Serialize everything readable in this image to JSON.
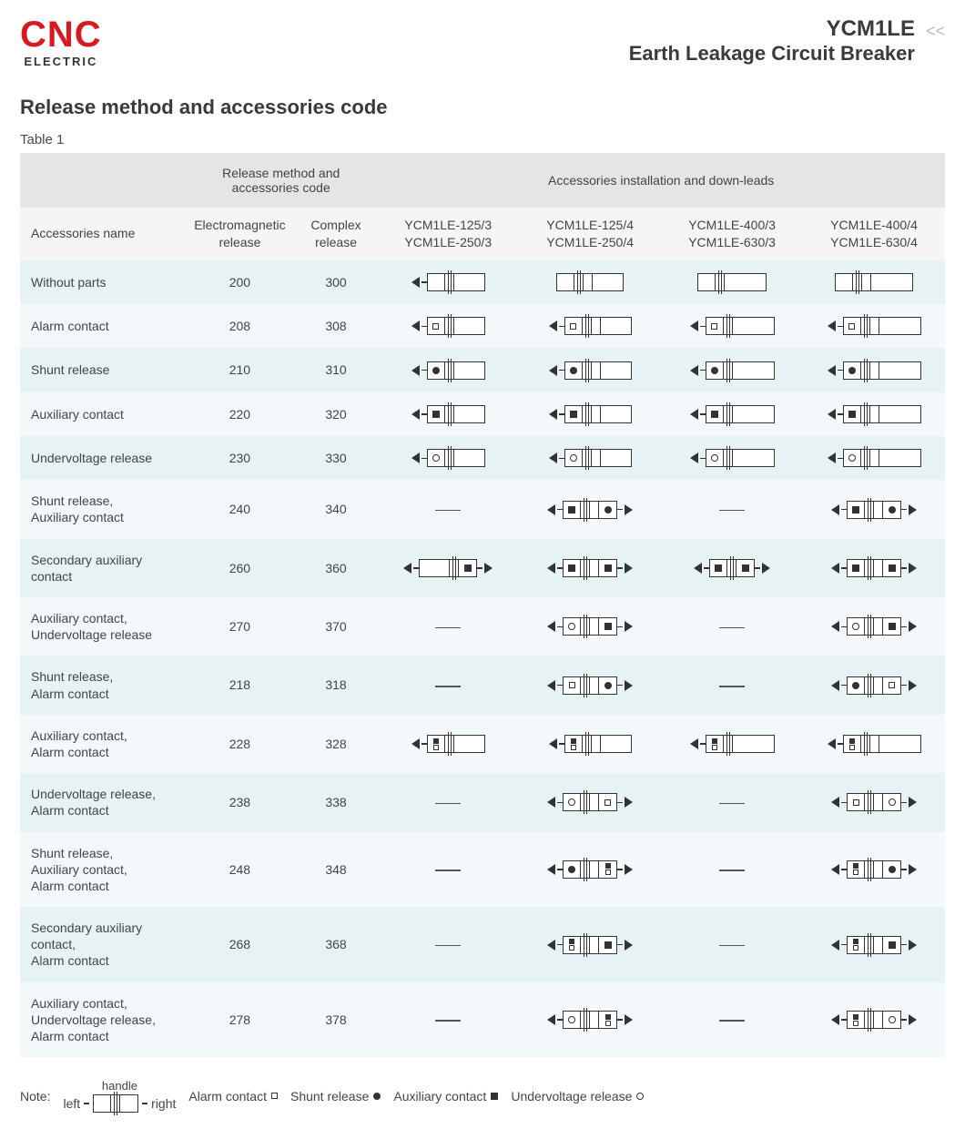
{
  "logo": {
    "brand": "CNC",
    "sub": "ELECTRIC"
  },
  "product": {
    "model": "YCM1LE",
    "name": "Earth Leakage Circuit Breaker"
  },
  "section_title": "Release method and accessories code",
  "table_label": "Table 1",
  "colors": {
    "brand_red": "#d71920",
    "text": "#3a3a3a",
    "row_odd": "#e7f2f5",
    "row_even": "#f3f9fb",
    "header_bg": "#e5e5e5",
    "subheader_bg": "#f5f5f5",
    "line": "#333333"
  },
  "group_headers": {
    "codes": "Release method and accessories code",
    "install": "Accessories installation and down-leads"
  },
  "columns": {
    "name": "Accessories name",
    "em_release": "Electromagnetic release",
    "complex_release": "Complex release",
    "col1_l1": "YCM1LE-125/3",
    "col1_l2": "YCM1LE-250/3",
    "col2_l1": "YCM1LE-125/4",
    "col2_l2": "YCM1LE-250/4",
    "col3_l1": "YCM1LE-400/3",
    "col3_l2": "YCM1LE-630/3",
    "col4_l1": "YCM1LE-400/4",
    "col4_l2": "YCM1LE-630/4"
  },
  "legend": {
    "note": "Note:",
    "handle": "handle",
    "left": "left",
    "right": "right",
    "alarm": "Alarm contact",
    "shunt": "Shunt release",
    "aux": "Auxiliary contact",
    "uv": "Undervoltage release"
  },
  "symbols": {
    "alarm": "sym-alarm",
    "shunt": "sym-shunt",
    "aux": "sym-aux",
    "uv": "sym-uv"
  },
  "rows": [
    {
      "name": "Without parts",
      "em": "200",
      "cx": "300",
      "d": [
        {
          "left_arrow": true,
          "left_sym": [],
          "right_cell": "wide",
          "right_sym": [],
          "right_arrow": false,
          "poles": 3
        },
        {
          "left_arrow": false,
          "left_sym": [],
          "right_cell": "wide",
          "right_sym": [],
          "right_arrow": false,
          "poles": 4
        },
        {
          "left_arrow": false,
          "left_sym": [],
          "right_cell": "wider",
          "right_sym": [],
          "right_arrow": false,
          "poles": 3
        },
        {
          "left_arrow": false,
          "left_sym": [],
          "right_cell": "wider",
          "right_sym": [],
          "right_arrow": false,
          "poles": 4
        }
      ]
    },
    {
      "name": "Alarm contact",
      "em": "208",
      "cx": "308",
      "d": [
        {
          "left_arrow": true,
          "left_sym": [
            "alarm"
          ],
          "right_cell": "wide",
          "right_sym": [],
          "right_arrow": false,
          "poles": 3
        },
        {
          "left_arrow": true,
          "left_sym": [
            "alarm"
          ],
          "right_cell": "wide",
          "right_sym": [],
          "right_arrow": false,
          "poles": 4
        },
        {
          "left_arrow": true,
          "left_sym": [
            "alarm"
          ],
          "right_cell": "wider",
          "right_sym": [],
          "right_arrow": false,
          "poles": 3
        },
        {
          "left_arrow": true,
          "left_sym": [
            "alarm"
          ],
          "right_cell": "wider",
          "right_sym": [],
          "right_arrow": false,
          "poles": 4
        }
      ]
    },
    {
      "name": "Shunt release",
      "em": "210",
      "cx": "310",
      "d": [
        {
          "left_arrow": true,
          "left_sym": [
            "shunt"
          ],
          "right_cell": "wide",
          "right_sym": [],
          "right_arrow": false,
          "poles": 3
        },
        {
          "left_arrow": true,
          "left_sym": [
            "shunt"
          ],
          "right_cell": "wide",
          "right_sym": [],
          "right_arrow": false,
          "poles": 4
        },
        {
          "left_arrow": true,
          "left_sym": [
            "shunt"
          ],
          "right_cell": "wider",
          "right_sym": [],
          "right_arrow": false,
          "poles": 3
        },
        {
          "left_arrow": true,
          "left_sym": [
            "shunt"
          ],
          "right_cell": "wider",
          "right_sym": [],
          "right_arrow": false,
          "poles": 4
        }
      ]
    },
    {
      "name": "Auxiliary contact",
      "em": "220",
      "cx": "320",
      "d": [
        {
          "left_arrow": true,
          "left_sym": [
            "aux"
          ],
          "right_cell": "wide",
          "right_sym": [],
          "right_arrow": false,
          "poles": 3
        },
        {
          "left_arrow": true,
          "left_sym": [
            "aux"
          ],
          "right_cell": "wide",
          "right_sym": [],
          "right_arrow": false,
          "poles": 4
        },
        {
          "left_arrow": true,
          "left_sym": [
            "aux"
          ],
          "right_cell": "wider",
          "right_sym": [],
          "right_arrow": false,
          "poles": 3
        },
        {
          "left_arrow": true,
          "left_sym": [
            "aux"
          ],
          "right_cell": "wider",
          "right_sym": [],
          "right_arrow": false,
          "poles": 4
        }
      ]
    },
    {
      "name": "Undervoltage release",
      "em": "230",
      "cx": "330",
      "d": [
        {
          "left_arrow": true,
          "left_sym": [
            "uv"
          ],
          "right_cell": "wide",
          "right_sym": [],
          "right_arrow": false,
          "poles": 3
        },
        {
          "left_arrow": true,
          "left_sym": [
            "uv"
          ],
          "right_cell": "wide",
          "right_sym": [],
          "right_arrow": false,
          "poles": 4
        },
        {
          "left_arrow": true,
          "left_sym": [
            "uv"
          ],
          "right_cell": "wider",
          "right_sym": [],
          "right_arrow": false,
          "poles": 3
        },
        {
          "left_arrow": true,
          "left_sym": [
            "uv"
          ],
          "right_cell": "wider",
          "right_sym": [],
          "right_arrow": false,
          "poles": 4
        }
      ]
    },
    {
      "name": "Shunt release,\nAuxiliary contact",
      "em": "240",
      "cx": "340",
      "d": [
        null,
        {
          "left_arrow": true,
          "left_sym": [
            "aux"
          ],
          "right_cell": "narrow",
          "right_sym": [
            "shunt"
          ],
          "right_arrow": true,
          "poles": 4
        },
        null,
        {
          "left_arrow": true,
          "left_sym": [
            "aux"
          ],
          "right_cell": "narrow",
          "right_sym": [
            "shunt"
          ],
          "right_arrow": true,
          "poles": 4
        }
      ]
    },
    {
      "name": "Secondary auxiliary contact",
      "em": "260",
      "cx": "360",
      "d": [
        {
          "left_arrow": true,
          "left_sym": [],
          "right_cell": "narrow",
          "right_sym": [
            "aux"
          ],
          "right_arrow": true,
          "poles": 3,
          "left_wide": true
        },
        {
          "left_arrow": true,
          "left_sym": [
            "aux"
          ],
          "right_cell": "narrow",
          "right_sym": [
            "aux"
          ],
          "right_arrow": true,
          "poles": 4
        },
        {
          "left_arrow": true,
          "left_sym": [
            "aux"
          ],
          "right_cell": "narrow",
          "right_sym": [
            "aux"
          ],
          "right_arrow": true,
          "poles": 3
        },
        {
          "left_arrow": true,
          "left_sym": [
            "aux"
          ],
          "right_cell": "narrow",
          "right_sym": [
            "aux"
          ],
          "right_arrow": true,
          "poles": 4
        }
      ]
    },
    {
      "name": "Auxiliary contact,\nUndervoltage release",
      "em": "270",
      "cx": "370",
      "d": [
        null,
        {
          "left_arrow": true,
          "left_sym": [
            "uv"
          ],
          "right_cell": "narrow",
          "right_sym": [
            "aux"
          ],
          "right_arrow": true,
          "poles": 4
        },
        null,
        {
          "left_arrow": true,
          "left_sym": [
            "uv"
          ],
          "right_cell": "narrow",
          "right_sym": [
            "aux"
          ],
          "right_arrow": true,
          "poles": 4
        }
      ]
    },
    {
      "name": "Shunt release,\nAlarm contact",
      "em": "218",
      "cx": "318",
      "d": [
        null,
        {
          "left_arrow": true,
          "left_sym": [
            "alarm"
          ],
          "right_cell": "narrow",
          "right_sym": [
            "shunt"
          ],
          "right_arrow": true,
          "poles": 4
        },
        null,
        {
          "left_arrow": true,
          "left_sym": [
            "shunt"
          ],
          "right_cell": "narrow",
          "right_sym": [
            "alarm"
          ],
          "right_arrow": true,
          "poles": 4
        }
      ]
    },
    {
      "name": "Auxiliary contact,\nAlarm contact",
      "em": "228",
      "cx": "328",
      "d": [
        {
          "left_arrow": true,
          "left_sym": [
            [
              "aux",
              "alarm"
            ]
          ],
          "right_cell": "wide",
          "right_sym": [],
          "right_arrow": false,
          "poles": 3
        },
        {
          "left_arrow": true,
          "left_sym": [
            [
              "aux",
              "alarm"
            ]
          ],
          "right_cell": "wide",
          "right_sym": [],
          "right_arrow": false,
          "poles": 4
        },
        {
          "left_arrow": true,
          "left_sym": [
            [
              "aux",
              "alarm"
            ]
          ],
          "right_cell": "wider",
          "right_sym": [],
          "right_arrow": false,
          "poles": 3
        },
        {
          "left_arrow": true,
          "left_sym": [
            [
              "aux",
              "alarm"
            ]
          ],
          "right_cell": "wider",
          "right_sym": [],
          "right_arrow": false,
          "poles": 4
        }
      ]
    },
    {
      "name": "Undervoltage release,\nAlarm contact",
      "em": "238",
      "cx": "338",
      "d": [
        null,
        {
          "left_arrow": true,
          "left_sym": [
            "uv"
          ],
          "right_cell": "narrow",
          "right_sym": [
            "alarm"
          ],
          "right_arrow": true,
          "poles": 4
        },
        null,
        {
          "left_arrow": true,
          "left_sym": [
            "alarm"
          ],
          "right_cell": "narrow",
          "right_sym": [
            "uv"
          ],
          "right_arrow": true,
          "poles": 4
        }
      ]
    },
    {
      "name": "Shunt release,\nAuxiliary contact,\nAlarm contact",
      "em": "248",
      "cx": "348",
      "d": [
        null,
        {
          "left_arrow": true,
          "left_sym": [
            "shunt"
          ],
          "right_cell": "narrow",
          "right_sym": [
            [
              "aux",
              "alarm"
            ]
          ],
          "right_arrow": true,
          "poles": 4
        },
        null,
        {
          "left_arrow": true,
          "left_sym": [
            [
              "aux",
              "alarm"
            ]
          ],
          "right_cell": "narrow",
          "right_sym": [
            "shunt"
          ],
          "right_arrow": true,
          "poles": 4
        }
      ]
    },
    {
      "name": "Secondary auxiliary contact,\nAlarm contact",
      "em": "268",
      "cx": "368",
      "d": [
        null,
        {
          "left_arrow": true,
          "left_sym": [
            [
              "aux",
              "alarm"
            ]
          ],
          "right_cell": "narrow",
          "right_sym": [
            "aux"
          ],
          "right_arrow": true,
          "poles": 4
        },
        null,
        {
          "left_arrow": true,
          "left_sym": [
            [
              "aux",
              "alarm"
            ]
          ],
          "right_cell": "narrow",
          "right_sym": [
            "aux"
          ],
          "right_arrow": true,
          "poles": 4
        }
      ]
    },
    {
      "name": "Auxiliary contact,\nUndervoltage release,\nAlarm contact",
      "em": "278",
      "cx": "378",
      "d": [
        null,
        {
          "left_arrow": true,
          "left_sym": [
            "uv"
          ],
          "right_cell": "narrow",
          "right_sym": [
            [
              "aux",
              "alarm"
            ]
          ],
          "right_arrow": true,
          "poles": 4
        },
        null,
        {
          "left_arrow": true,
          "left_sym": [
            [
              "aux",
              "alarm"
            ]
          ],
          "right_cell": "narrow",
          "right_sym": [
            "uv"
          ],
          "right_arrow": true,
          "poles": 4
        }
      ]
    }
  ]
}
